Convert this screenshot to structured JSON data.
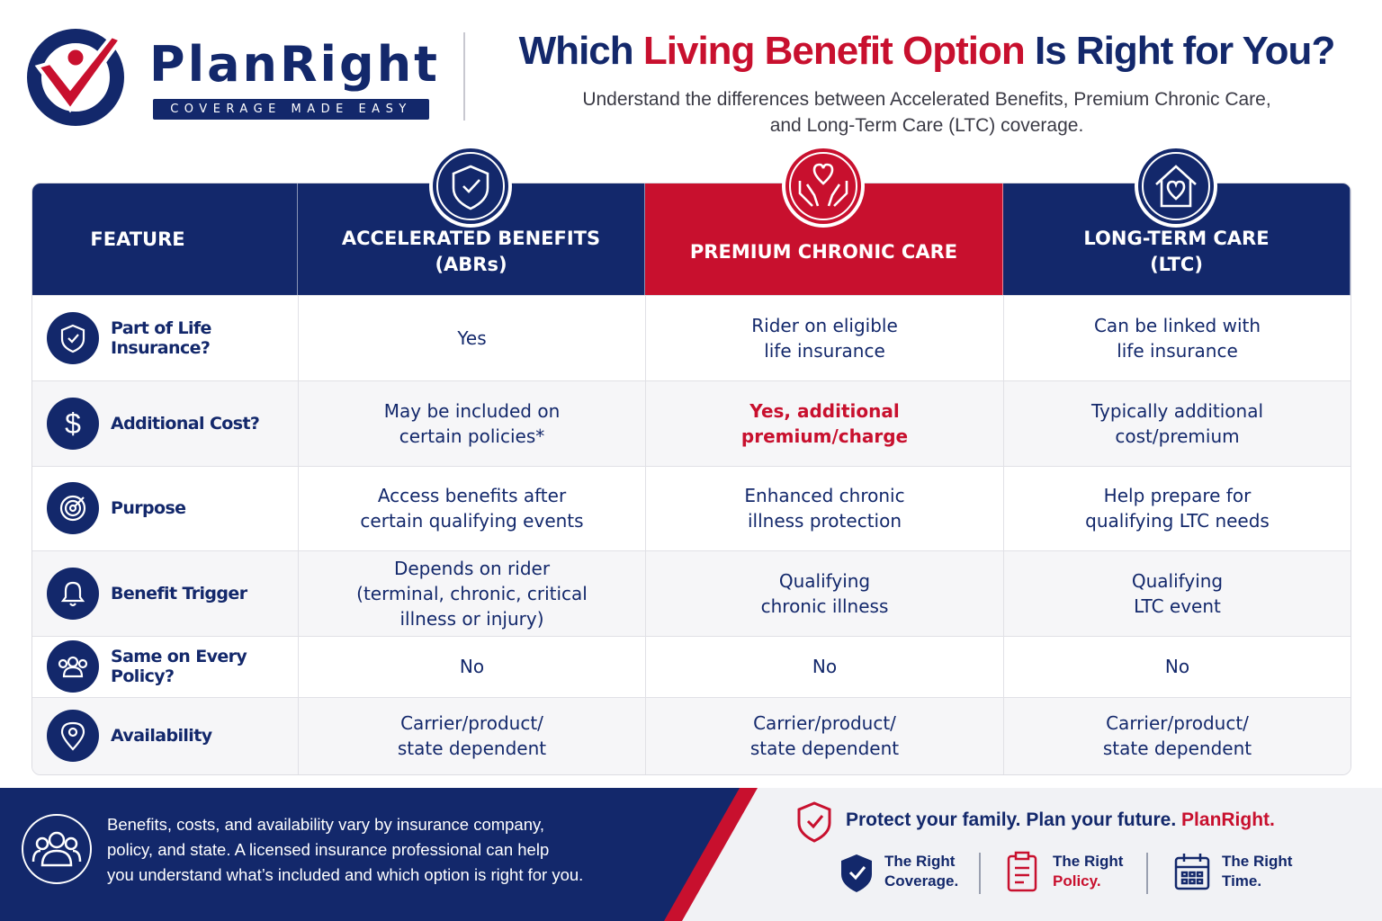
{
  "brand": {
    "name": "PlanRight",
    "tagline": "COVERAGE MADE EASY"
  },
  "header": {
    "title": {
      "before": "Which",
      "highlight": "Living Benefit Option",
      "after": "Is Right for You?"
    },
    "subtitle_lines": [
      "Understand the differences between Accelerated Benefits, Premium Chronic Care,",
      "and Long-Term Care (LTC) coverage."
    ]
  },
  "table": {
    "columns": [
      [
        "FEATURE"
      ],
      [
        "ACCELERATED BENEFITS",
        "(ABRs)"
      ],
      [
        "PREMIUM CHRONIC CARE"
      ],
      [
        "LONG-TERM CARE",
        "(LTC)"
      ]
    ],
    "rows": [
      {
        "feature": "Part of Life Insurance?",
        "cells": [
          [
            "Yes"
          ],
          [
            "Rider on eligible",
            "life insurance"
          ],
          [
            "Can be linked with",
            "life insurance"
          ]
        ]
      },
      {
        "feature": "Additional Cost?",
        "cells": [
          [
            "May be included on",
            "certain policies*"
          ],
          [
            "Yes, additional",
            "premium/charge"
          ],
          [
            "Typically additional",
            "cost/premium"
          ]
        ]
      },
      {
        "feature": "Purpose",
        "cells": [
          [
            "Access benefits after",
            "certain qualifying events"
          ],
          [
            "Enhanced chronic",
            "illness protection"
          ],
          [
            "Help prepare for",
            "qualifying LTC needs"
          ]
        ]
      },
      {
        "feature": "Benefit Trigger",
        "cells": [
          [
            "Depends on rider",
            "(terminal, chronic, critical",
            "illness or injury)"
          ],
          [
            "Qualifying",
            "chronic illness"
          ],
          [
            "Qualifying",
            "LTC event"
          ]
        ]
      },
      {
        "feature": "Same on Every Policy?",
        "cells": [
          [
            "No"
          ],
          [
            "No"
          ],
          [
            "No"
          ]
        ]
      },
      {
        "feature": "Availability",
        "cells": [
          [
            "Carrier/product/",
            "state dependent"
          ],
          [
            "Carrier/product/",
            "state dependent"
          ],
          [
            "Carrier/product/",
            "state dependent"
          ]
        ]
      }
    ]
  },
  "footer": {
    "note_lines": [
      "Benefits, costs, and availability vary by insurance company,",
      "policy, and state. A licensed insurance professional can help",
      "you understand what’s included and which option is right for you."
    ],
    "tagline": {
      "part1": "Protect your family.",
      "part2": "Plan your future.",
      "brand": "PlanRight."
    },
    "badges": [
      {
        "lines": [
          "The Right",
          "Coverage."
        ]
      },
      {
        "lines": [
          "The Right",
          "Policy."
        ]
      },
      {
        "lines": [
          "The Right",
          "Time."
        ]
      }
    ]
  }
}
